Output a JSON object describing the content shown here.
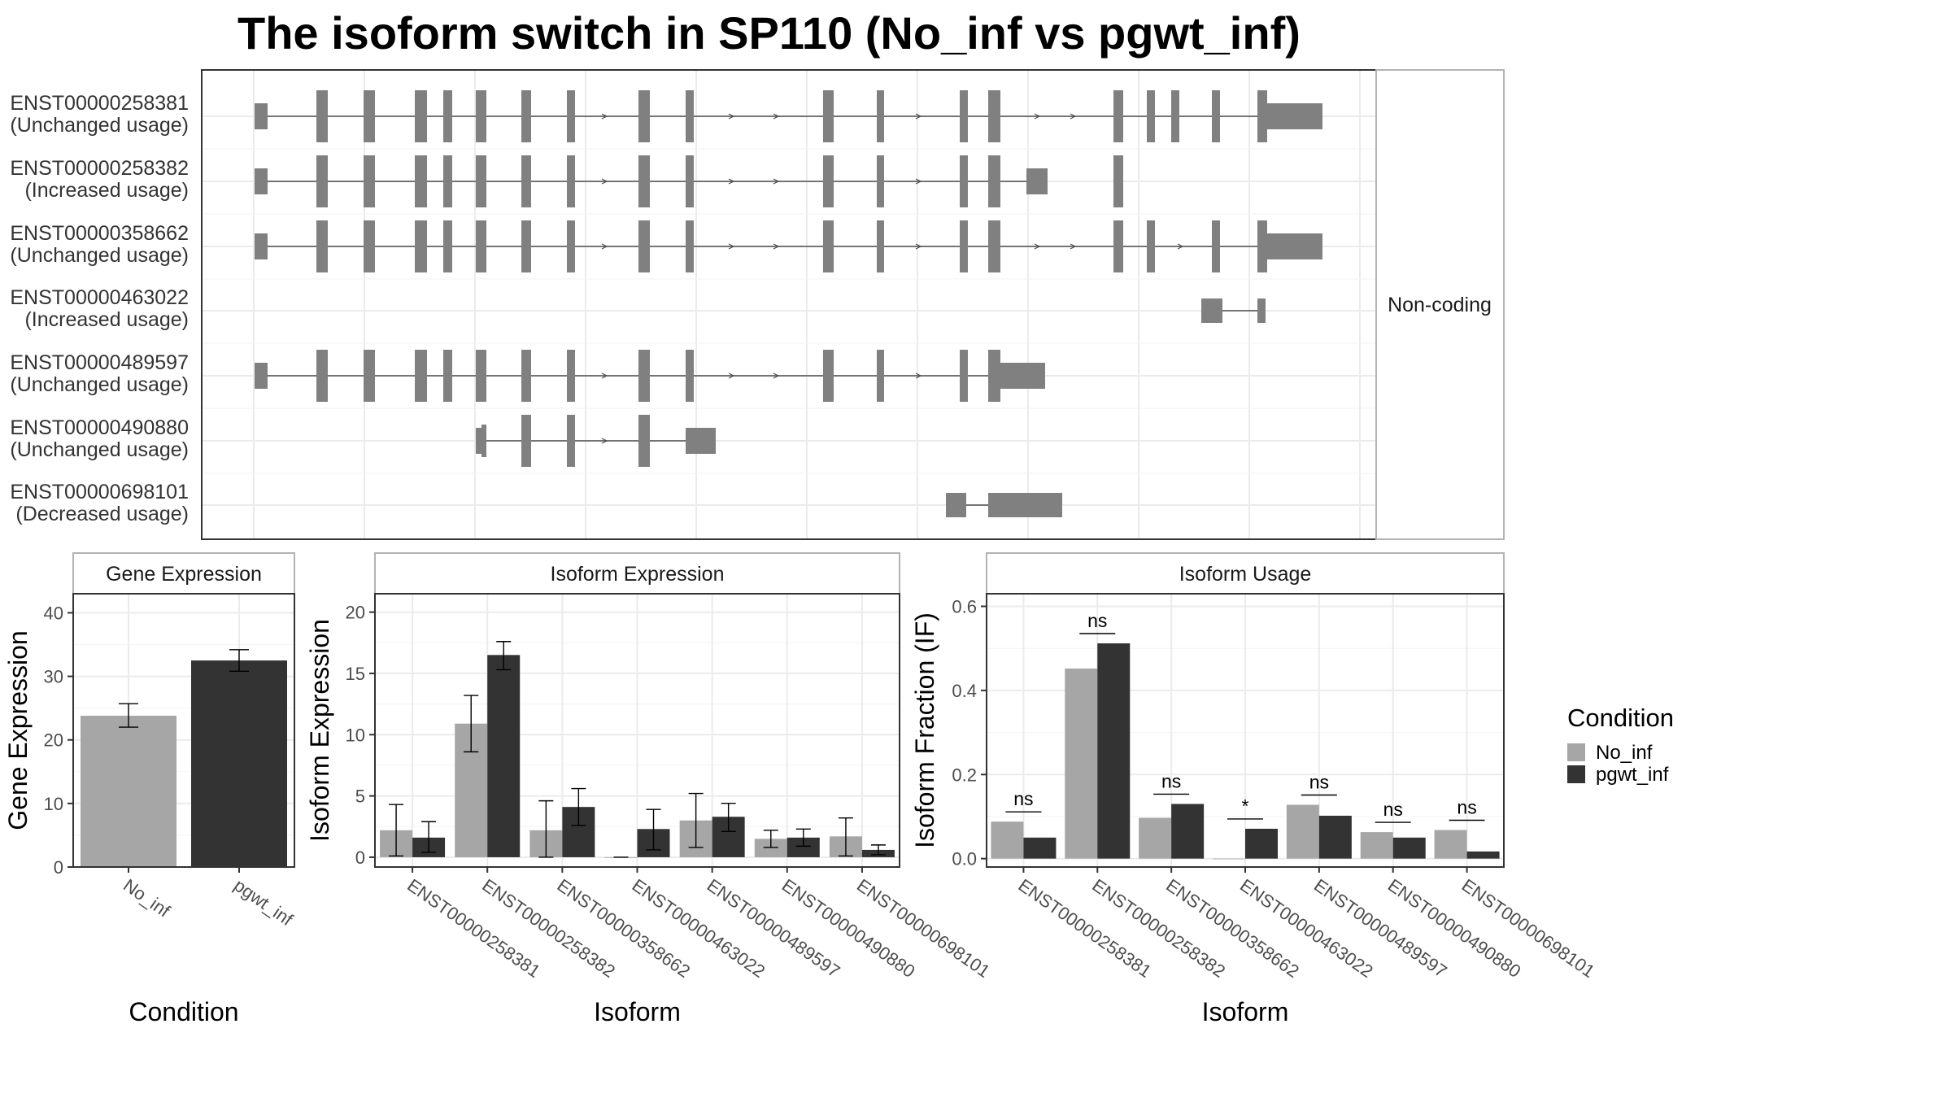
{
  "title": "The isoform switch in SP110 (No_inf vs pgwt_inf)",
  "colors": {
    "No_inf": "#a6a6a6",
    "pgwt_inf": "#333333",
    "exon": "#808080",
    "grid": "#ebebeb",
    "panel_border": "#333333",
    "strip_border": "#b3b3b3"
  },
  "legend": {
    "title": "Condition",
    "items": [
      "No_inf",
      "pgwt_inf"
    ]
  },
  "chart_data": [
    {
      "type": "gene-structure",
      "facet_label": "Non-coding",
      "transcripts": [
        {
          "id": "ENST00000258381",
          "usage": "(Unchanged usage)"
        },
        {
          "id": "ENST00000258382",
          "usage": "(Increased usage)"
        },
        {
          "id": "ENST00000358662",
          "usage": "(Unchanged usage)"
        },
        {
          "id": "ENST00000463022",
          "usage": "(Increased usage)"
        },
        {
          "id": "ENST00000489597",
          "usage": "(Unchanged usage)"
        },
        {
          "id": "ENST00000490880",
          "usage": "(Unchanged usage)"
        },
        {
          "id": "ENST00000698101",
          "usage": "(Decreased usage)"
        }
      ]
    },
    {
      "type": "bar",
      "panel": "Gene Expression",
      "xlabel": "Condition",
      "ylabel": "Gene Expression",
      "ylim": [
        0,
        43
      ],
      "yticks": [
        0,
        10,
        20,
        30,
        40
      ],
      "categories": [
        "No_inf",
        "pgwt_inf"
      ],
      "values": [
        23.8,
        32.5
      ],
      "errors": [
        [
          22.0,
          25.7
        ],
        [
          30.8,
          34.2
        ]
      ]
    },
    {
      "type": "bar",
      "panel": "Isoform Expression",
      "xlabel": "Isoform",
      "ylabel": "Isoform Expression",
      "ylim": [
        -0.8,
        21.5
      ],
      "yticks": [
        0,
        5,
        10,
        15,
        20
      ],
      "categories": [
        "ENST00000258381",
        "ENST00000258382",
        "ENST00000358662",
        "ENST00000463022",
        "ENST00000489597",
        "ENST00000490880",
        "ENST00000698101"
      ],
      "series": [
        {
          "name": "No_inf",
          "values": [
            2.2,
            10.9,
            2.2,
            0.0,
            3.0,
            1.5,
            1.7
          ],
          "errors": [
            [
              0.1,
              4.3
            ],
            [
              8.6,
              13.2
            ],
            [
              0.0,
              4.6
            ],
            [
              0.0,
              0.0
            ],
            [
              0.8,
              5.2
            ],
            [
              0.8,
              2.2
            ],
            [
              0.1,
              3.2
            ]
          ]
        },
        {
          "name": "pgwt_inf",
          "values": [
            1.6,
            16.5,
            4.1,
            2.3,
            3.3,
            1.6,
            0.6
          ],
          "errors": [
            [
              0.4,
              2.9
            ],
            [
              15.3,
              17.6
            ],
            [
              2.6,
              5.6
            ],
            [
              0.6,
              3.9
            ],
            [
              2.1,
              4.4
            ],
            [
              0.9,
              2.3
            ],
            [
              0.2,
              1.0
            ]
          ]
        }
      ]
    },
    {
      "type": "bar",
      "panel": "Isoform Usage",
      "xlabel": "Isoform",
      "ylabel": "Isoform Fraction (IF)",
      "ylim": [
        -0.02,
        0.63
      ],
      "yticks": [
        0.0,
        0.2,
        0.4,
        0.6
      ],
      "ytick_labels": [
        "0.0",
        "0.2",
        "0.4",
        "0.6"
      ],
      "categories": [
        "ENST00000258381",
        "ENST00000258382",
        "ENST00000358662",
        "ENST00000463022",
        "ENST00000489597",
        "ENST00000490880",
        "ENST00000698101"
      ],
      "series": [
        {
          "name": "No_inf",
          "values": [
            0.088,
            0.452,
            0.097,
            0.0,
            0.128,
            0.063,
            0.068
          ]
        },
        {
          "name": "pgwt_inf",
          "values": [
            0.05,
            0.512,
            0.13,
            0.071,
            0.102,
            0.05,
            0.017
          ]
        }
      ],
      "significance": [
        "ns",
        "ns",
        "ns",
        "*",
        "ns",
        "ns",
        "ns"
      ]
    }
  ]
}
